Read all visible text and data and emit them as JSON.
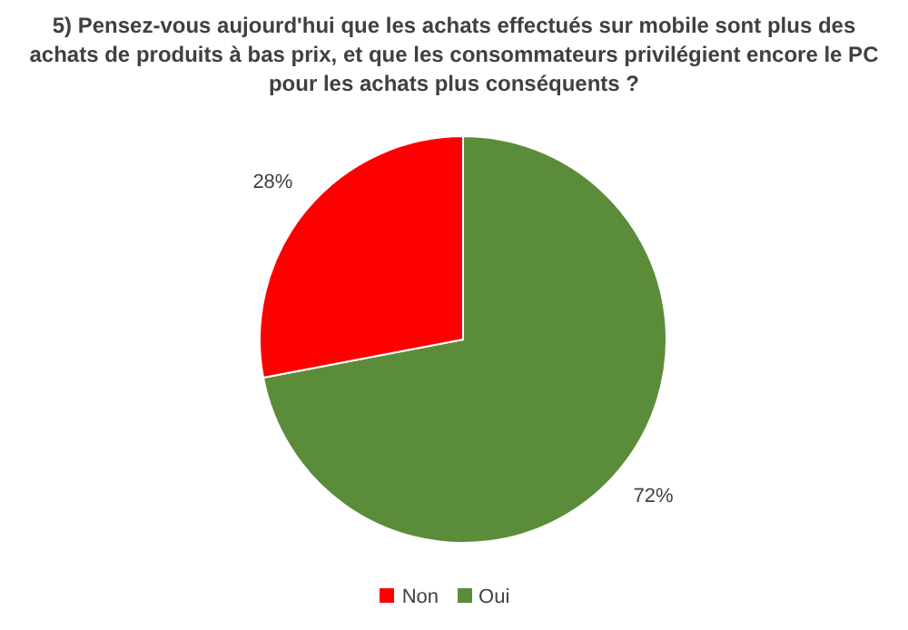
{
  "chart_data": {
    "type": "pie",
    "title": "5) Pensez-vous aujourd'hui que les achats effectués sur mobile sont plus des achats de produits à bas prix, et que les consommateurs privilégient encore le PC pour les achats plus conséquents ?",
    "categories": [
      "Oui",
      "Non"
    ],
    "values": [
      72,
      28
    ],
    "colors": [
      "#5b8c3a",
      "#ff0000"
    ],
    "value_labels": [
      "72%",
      "28%"
    ],
    "legend": "bottom"
  }
}
